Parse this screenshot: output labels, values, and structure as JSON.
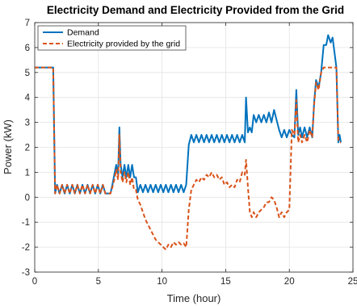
{
  "chart_data": {
    "type": "line",
    "title": "Electricity Demand and Electricity Provided from the Grid",
    "xlabel": "Time (hour)",
    "ylabel": "Power (kW)",
    "xlim": [
      0,
      25
    ],
    "ylim": [
      -3,
      7
    ],
    "x_ticks": [
      "0",
      "5",
      "10",
      "15",
      "20",
      "25"
    ],
    "y_ticks": [
      "-3",
      "-2",
      "-1",
      "0",
      "1",
      "2",
      "3",
      "4",
      "5",
      "6",
      "7"
    ],
    "grid": true,
    "legend_position": "top-left",
    "series": [
      {
        "name": "Demand",
        "color": "#0072BD",
        "style": "solid",
        "points": [
          [
            0,
            5.2
          ],
          [
            1.3,
            5.2
          ],
          [
            1.45,
            5.2
          ],
          [
            1.6,
            0.15
          ],
          [
            1.75,
            0.5
          ],
          [
            1.95,
            0.15
          ],
          [
            2.15,
            0.5
          ],
          [
            2.35,
            0.15
          ],
          [
            2.55,
            0.5
          ],
          [
            2.75,
            0.15
          ],
          [
            2.95,
            0.5
          ],
          [
            3.15,
            0.15
          ],
          [
            3.35,
            0.5
          ],
          [
            3.55,
            0.15
          ],
          [
            3.75,
            0.5
          ],
          [
            3.95,
            0.15
          ],
          [
            4.15,
            0.5
          ],
          [
            4.35,
            0.15
          ],
          [
            4.55,
            0.5
          ],
          [
            4.75,
            0.15
          ],
          [
            4.95,
            0.5
          ],
          [
            5.15,
            0.15
          ],
          [
            5.35,
            0.5
          ],
          [
            5.55,
            0.15
          ],
          [
            5.75,
            0.15
          ],
          [
            5.95,
            0.15
          ],
          [
            6.1,
            0.5
          ],
          [
            6.25,
            0.9
          ],
          [
            6.4,
            1.3
          ],
          [
            6.55,
            0.9
          ],
          [
            6.65,
            2.8
          ],
          [
            6.75,
            1.3
          ],
          [
            6.9,
            0.8
          ],
          [
            7.05,
            1.3
          ],
          [
            7.2,
            0.8
          ],
          [
            7.35,
            1.3
          ],
          [
            7.5,
            0.8
          ],
          [
            7.65,
            1.3
          ],
          [
            7.8,
            0.8
          ],
          [
            7.95,
            0.8
          ],
          [
            8.1,
            0.2
          ],
          [
            8.3,
            0.5
          ],
          [
            8.5,
            0.2
          ],
          [
            8.7,
            0.5
          ],
          [
            8.9,
            0.2
          ],
          [
            9.1,
            0.5
          ],
          [
            9.3,
            0.2
          ],
          [
            9.5,
            0.5
          ],
          [
            9.7,
            0.2
          ],
          [
            9.9,
            0.5
          ],
          [
            10.1,
            0.2
          ],
          [
            10.3,
            0.5
          ],
          [
            10.5,
            0.2
          ],
          [
            10.7,
            0.5
          ],
          [
            10.9,
            0.2
          ],
          [
            11.1,
            0.5
          ],
          [
            11.3,
            0.2
          ],
          [
            11.5,
            0.5
          ],
          [
            11.7,
            0.2
          ],
          [
            11.9,
            0.5
          ],
          [
            12.1,
            2.1
          ],
          [
            12.3,
            2.5
          ],
          [
            12.5,
            2.2
          ],
          [
            12.7,
            2.5
          ],
          [
            12.9,
            2.2
          ],
          [
            13.1,
            2.5
          ],
          [
            13.3,
            2.2
          ],
          [
            13.5,
            2.5
          ],
          [
            13.7,
            2.2
          ],
          [
            13.9,
            2.5
          ],
          [
            14.1,
            2.2
          ],
          [
            14.3,
            2.5
          ],
          [
            14.5,
            2.2
          ],
          [
            14.7,
            2.5
          ],
          [
            14.9,
            2.2
          ],
          [
            15.1,
            2.5
          ],
          [
            15.3,
            2.2
          ],
          [
            15.5,
            2.5
          ],
          [
            15.7,
            2.2
          ],
          [
            15.9,
            2.5
          ],
          [
            16.1,
            2.2
          ],
          [
            16.3,
            2.5
          ],
          [
            16.5,
            2.2
          ],
          [
            16.6,
            4.0
          ],
          [
            16.75,
            2.6
          ],
          [
            16.9,
            2.8
          ],
          [
            17.05,
            2.6
          ],
          [
            17.2,
            3.3
          ],
          [
            17.4,
            3.0
          ],
          [
            17.6,
            3.3
          ],
          [
            17.8,
            3.0
          ],
          [
            18.0,
            3.3
          ],
          [
            18.2,
            3.0
          ],
          [
            18.4,
            3.4
          ],
          [
            18.6,
            3.0
          ],
          [
            18.8,
            3.5
          ],
          [
            19.0,
            3.1
          ],
          [
            19.2,
            2.7
          ],
          [
            19.4,
            2.4
          ],
          [
            19.6,
            2.7
          ],
          [
            19.8,
            2.4
          ],
          [
            20.0,
            2.7
          ],
          [
            20.2,
            2.5
          ],
          [
            20.4,
            2.4
          ],
          [
            20.55,
            4.3
          ],
          [
            20.7,
            2.5
          ],
          [
            20.85,
            2.8
          ],
          [
            21.0,
            2.4
          ],
          [
            21.2,
            2.8
          ],
          [
            21.4,
            2.4
          ],
          [
            21.6,
            2.8
          ],
          [
            21.8,
            2.4
          ],
          [
            21.95,
            3.8
          ],
          [
            22.1,
            4.7
          ],
          [
            22.3,
            4.4
          ],
          [
            22.5,
            5.0
          ],
          [
            22.7,
            6.1
          ],
          [
            22.9,
            6.1
          ],
          [
            23.05,
            6.5
          ],
          [
            23.25,
            6.2
          ],
          [
            23.4,
            6.4
          ],
          [
            23.55,
            5.8
          ],
          [
            23.7,
            5.2
          ],
          [
            23.85,
            2.2
          ],
          [
            23.95,
            2.5
          ],
          [
            24.05,
            2.2
          ]
        ]
      },
      {
        "name": "Electricity provided by the grid",
        "color": "#D95319",
        "style": "dashed",
        "points": [
          [
            0,
            5.2
          ],
          [
            1.3,
            5.2
          ],
          [
            1.45,
            5.2
          ],
          [
            1.6,
            0.15
          ],
          [
            1.75,
            0.5
          ],
          [
            1.95,
            0.15
          ],
          [
            2.15,
            0.5
          ],
          [
            2.35,
            0.15
          ],
          [
            2.55,
            0.5
          ],
          [
            2.75,
            0.15
          ],
          [
            2.95,
            0.5
          ],
          [
            3.15,
            0.15
          ],
          [
            3.35,
            0.5
          ],
          [
            3.55,
            0.15
          ],
          [
            3.75,
            0.5
          ],
          [
            3.95,
            0.15
          ],
          [
            4.15,
            0.5
          ],
          [
            4.35,
            0.15
          ],
          [
            4.55,
            0.5
          ],
          [
            4.75,
            0.15
          ],
          [
            4.95,
            0.5
          ],
          [
            5.15,
            0.15
          ],
          [
            5.35,
            0.5
          ],
          [
            5.55,
            0.15
          ],
          [
            5.75,
            0.15
          ],
          [
            5.95,
            0.15
          ],
          [
            6.1,
            0.4
          ],
          [
            6.25,
            0.7
          ],
          [
            6.4,
            1.1
          ],
          [
            6.55,
            0.7
          ],
          [
            6.65,
            2.5
          ],
          [
            6.75,
            1.0
          ],
          [
            6.9,
            0.6
          ],
          [
            7.05,
            1.0
          ],
          [
            7.2,
            0.6
          ],
          [
            7.35,
            1.0
          ],
          [
            7.5,
            0.5
          ],
          [
            7.65,
            0.8
          ],
          [
            7.8,
            0.3
          ],
          [
            7.95,
            0.3
          ],
          [
            8.1,
            -0.1
          ],
          [
            8.3,
            -0.3
          ],
          [
            8.5,
            -0.6
          ],
          [
            8.7,
            -0.9
          ],
          [
            8.9,
            -1.1
          ],
          [
            9.1,
            -1.3
          ],
          [
            9.3,
            -1.5
          ],
          [
            9.5,
            -1.7
          ],
          [
            9.7,
            -1.8
          ],
          [
            9.9,
            -1.9
          ],
          [
            10.1,
            -2.0
          ],
          [
            10.3,
            -2.1
          ],
          [
            10.5,
            -1.9
          ],
          [
            10.7,
            -2.0
          ],
          [
            10.9,
            -1.8
          ],
          [
            11.1,
            -1.9
          ],
          [
            11.3,
            -1.8
          ],
          [
            11.5,
            -1.9
          ],
          [
            11.7,
            -1.85
          ],
          [
            11.9,
            -2.0
          ],
          [
            12.1,
            -0.5
          ],
          [
            12.3,
            0.3
          ],
          [
            12.5,
            0.5
          ],
          [
            12.7,
            0.7
          ],
          [
            12.9,
            0.6
          ],
          [
            13.1,
            0.8
          ],
          [
            13.3,
            0.7
          ],
          [
            13.5,
            0.9
          ],
          [
            13.7,
            0.8
          ],
          [
            13.9,
            1.0
          ],
          [
            14.1,
            0.8
          ],
          [
            14.3,
            0.9
          ],
          [
            14.5,
            0.7
          ],
          [
            14.7,
            0.8
          ],
          [
            14.9,
            0.5
          ],
          [
            15.1,
            0.6
          ],
          [
            15.3,
            0.4
          ],
          [
            15.5,
            0.5
          ],
          [
            15.7,
            0.4
          ],
          [
            15.9,
            0.7
          ],
          [
            16.1,
            0.6
          ],
          [
            16.3,
            1.0
          ],
          [
            16.5,
            0.9
          ],
          [
            16.6,
            1.5
          ],
          [
            16.75,
            0.4
          ],
          [
            16.9,
            -0.6
          ],
          [
            17.05,
            -0.8
          ],
          [
            17.2,
            -0.6
          ],
          [
            17.4,
            -0.8
          ],
          [
            17.6,
            -0.6
          ],
          [
            17.8,
            -0.5
          ],
          [
            18.0,
            -0.4
          ],
          [
            18.2,
            -0.2
          ],
          [
            18.4,
            -0.2
          ],
          [
            18.6,
            0.0
          ],
          [
            18.8,
            -0.1
          ],
          [
            19.0,
            -0.4
          ],
          [
            19.2,
            -0.8
          ],
          [
            19.4,
            -0.6
          ],
          [
            19.6,
            -0.8
          ],
          [
            19.8,
            -0.6
          ],
          [
            20.0,
            -0.5
          ],
          [
            20.2,
            2.7
          ],
          [
            20.4,
            2.5
          ],
          [
            20.55,
            3.9
          ],
          [
            20.7,
            2.2
          ],
          [
            20.85,
            2.5
          ],
          [
            21.0,
            2.2
          ],
          [
            21.2,
            2.5
          ],
          [
            21.4,
            2.2
          ],
          [
            21.6,
            2.7
          ],
          [
            21.8,
            2.4
          ],
          [
            21.95,
            3.7
          ],
          [
            22.1,
            4.6
          ],
          [
            22.3,
            4.3
          ],
          [
            22.5,
            5.0
          ],
          [
            22.7,
            5.2
          ],
          [
            22.9,
            5.2
          ],
          [
            23.05,
            5.2
          ],
          [
            23.25,
            5.2
          ],
          [
            23.4,
            5.2
          ],
          [
            23.55,
            5.2
          ],
          [
            23.7,
            5.2
          ],
          [
            23.85,
            2.3
          ],
          [
            23.95,
            2.2
          ],
          [
            24.05,
            2.2
          ]
        ]
      }
    ]
  }
}
